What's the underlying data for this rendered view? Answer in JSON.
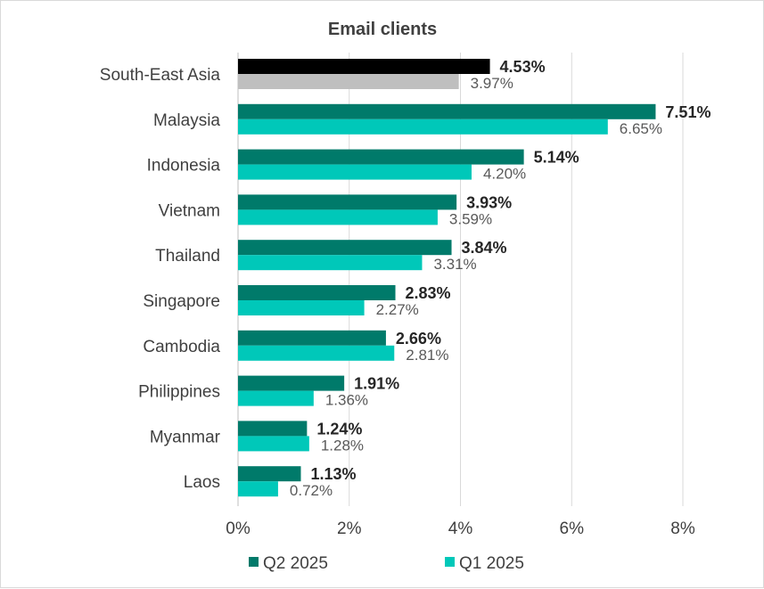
{
  "chart_data": {
    "type": "bar",
    "orientation": "horizontal",
    "title": "Email clients",
    "categories": [
      "South-East Asia",
      "Malaysia",
      "Indonesia",
      "Vietnam",
      "Thailand",
      "Singapore",
      "Cambodia",
      "Philippines",
      "Myanmar",
      "Laos"
    ],
    "series": [
      {
        "name": "Q2 2025",
        "color": "#007a6a",
        "highlight_color": "#000000",
        "values": [
          4.53,
          7.51,
          5.14,
          3.93,
          3.84,
          2.83,
          2.66,
          1.91,
          1.24,
          1.13
        ],
        "labels": [
          "4.53%",
          "7.51%",
          "5.14%",
          "3.93%",
          "3.84%",
          "2.83%",
          "2.66%",
          "1.91%",
          "1.24%",
          "1.13%"
        ]
      },
      {
        "name": "Q1 2025",
        "color": "#00c8b9",
        "highlight_color": "#bfbfbf",
        "values": [
          3.97,
          6.65,
          4.2,
          3.59,
          3.31,
          2.27,
          2.81,
          1.36,
          1.28,
          0.72
        ],
        "labels": [
          "3.97%",
          "6.65%",
          "4.20%",
          "3.59%",
          "3.31%",
          "2.27%",
          "2.81%",
          "1.36%",
          "1.28%",
          "0.72%"
        ]
      }
    ],
    "highlighted_category": "South-East Asia",
    "xlim": [
      0,
      8
    ],
    "x_ticks": [
      0,
      2,
      4,
      6,
      8
    ],
    "x_tick_labels": [
      "0%",
      "2%",
      "4%",
      "6%",
      "8%"
    ],
    "grid": true,
    "legend_position": "bottom"
  }
}
